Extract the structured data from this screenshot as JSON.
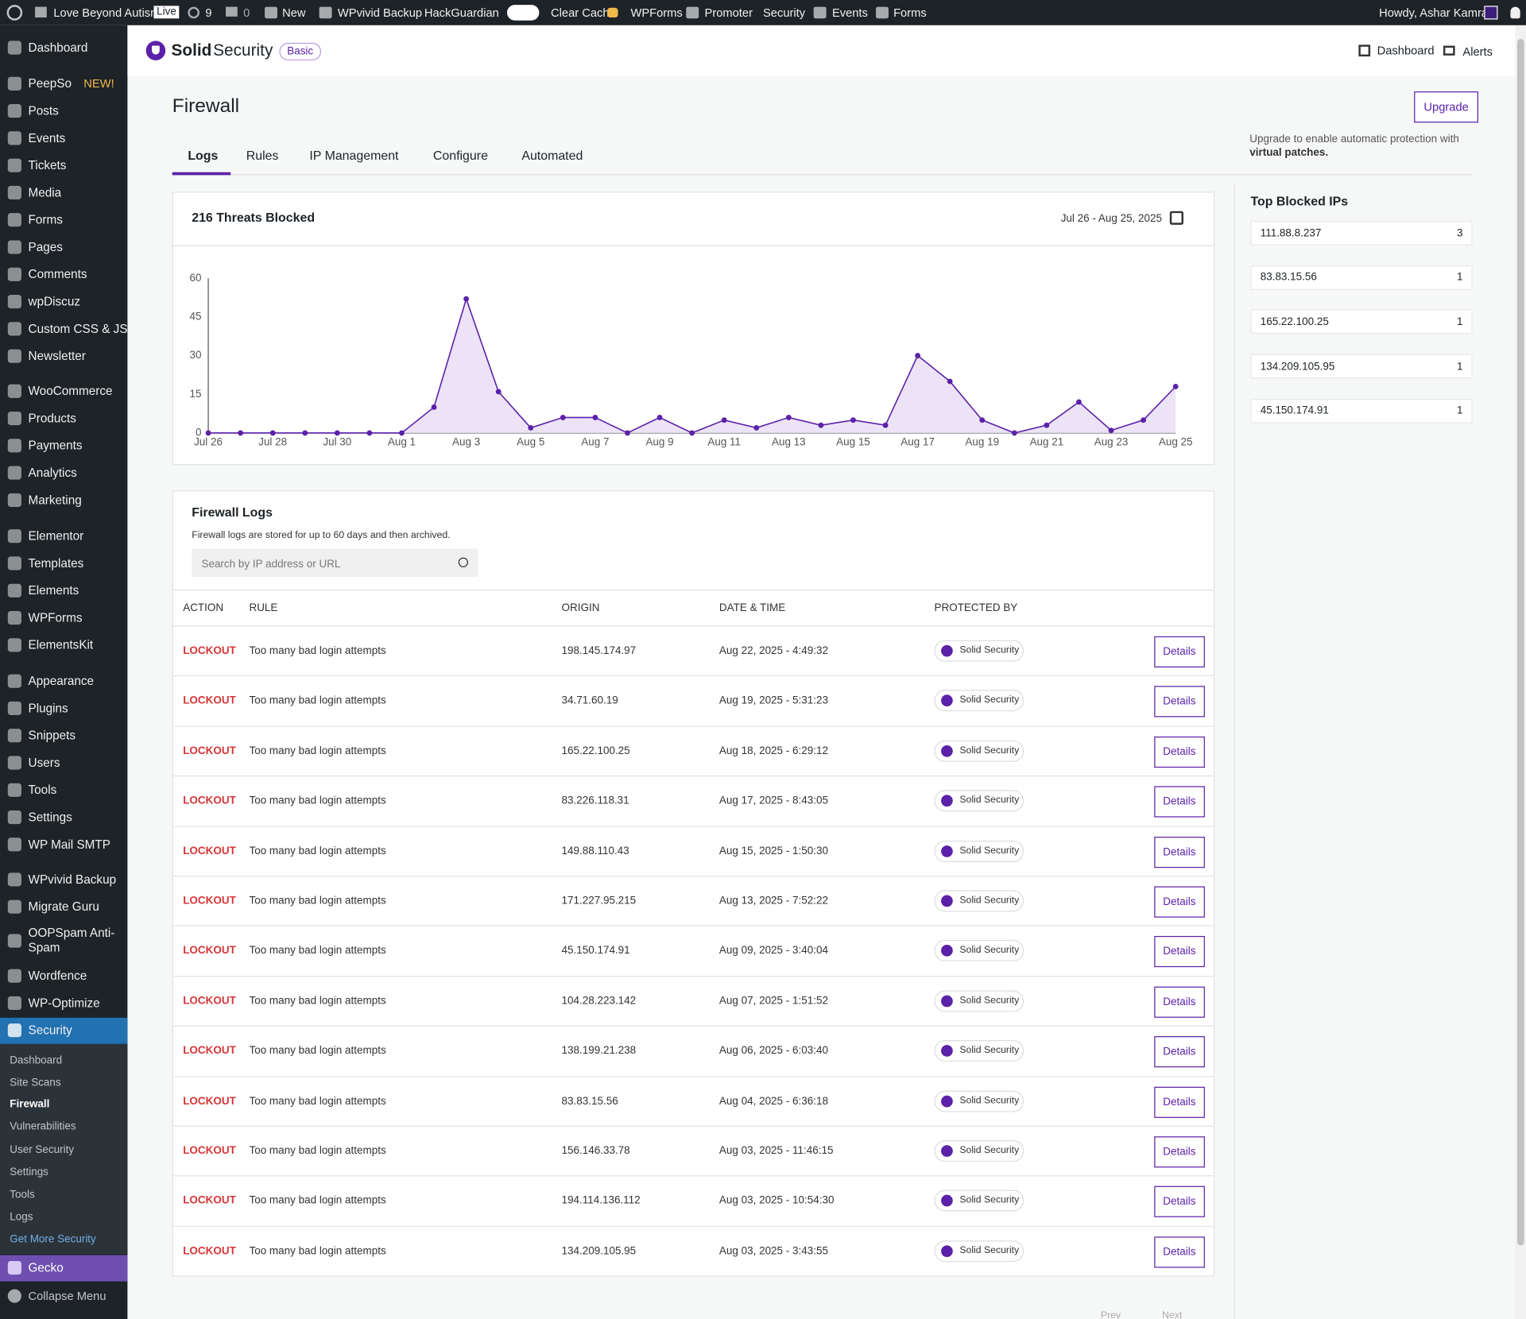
{
  "admin_bar": {
    "site": "Love Beyond Autism",
    "live": "Live",
    "updates": "9",
    "comments": "0",
    "items": [
      "New",
      "WPvivid Backup",
      "HackGuardian",
      "Clear Cache",
      "WPForms",
      "Promoter",
      "Security",
      "Events",
      "Forms"
    ],
    "howdy": "Howdy, Ashar Kamran"
  },
  "sidebar": {
    "menu": [
      "Dashboard",
      "PeepSo",
      "Posts",
      "Events",
      "Tickets",
      "Media",
      "Forms",
      "Pages",
      "Comments",
      "wpDiscuz",
      "Custom CSS & JS",
      "Newsletter",
      "WooCommerce",
      "Products",
      "Payments",
      "Analytics",
      "Marketing",
      "Elementor",
      "Templates",
      "Elements",
      "WPForms",
      "ElementsKit",
      "Appearance",
      "Plugins",
      "Snippets",
      "Users",
      "Tools",
      "Settings",
      "WP Mail SMTP",
      "WPvivid Backup",
      "Migrate Guru",
      "OOPSpam Anti-Spam",
      "Wordfence",
      "WP-Optimize",
      "Security"
    ],
    "peepso_badge": "NEW!",
    "submenu": [
      "Dashboard",
      "Site Scans",
      "Firewall",
      "Vulnerabilities",
      "User Security",
      "Settings",
      "Tools",
      "Logs",
      "Get More Security"
    ],
    "gecko": "Gecko",
    "collapse": "Collapse Menu"
  },
  "header": {
    "brand_bold": "Solid",
    "brand": "Security",
    "plan": "Basic",
    "dashboard": "Dashboard",
    "alerts": "Alerts"
  },
  "page": {
    "title": "Firewall",
    "upgrade": "Upgrade",
    "upgrade_note": "Upgrade to enable automatic protection with",
    "upgrade_note_bold": "virtual patches.",
    "tabs": [
      "Logs",
      "Rules",
      "IP Management",
      "Configure",
      "Automated"
    ]
  },
  "chart_data": {
    "type": "line",
    "title": "216 Threats Blocked",
    "subtitle": "Jul 26 - Aug 25, 2025",
    "categories": [
      "Jul 26",
      null,
      "Jul 28",
      null,
      "Jul 30",
      null,
      "Aug 1",
      null,
      "Aug 3",
      null,
      "Aug 5",
      null,
      "Aug 7",
      null,
      "Aug 9",
      null,
      "Aug 11",
      null,
      "Aug 13",
      null,
      "Aug 15",
      null,
      "Aug 17",
      null,
      "Aug 19",
      null,
      "Aug 21",
      null,
      "Aug 23",
      null,
      "Aug 25"
    ],
    "values": [
      0,
      0,
      0,
      0,
      0,
      0,
      0,
      10,
      52,
      16,
      2,
      6,
      6,
      0,
      6,
      0,
      5,
      2,
      6,
      3,
      5,
      3,
      30,
      20,
      5,
      0,
      3,
      12,
      1,
      5,
      18
    ],
    "color": "#5b21a8",
    "fill": "#ece3f7",
    "ylim": [
      0,
      60
    ],
    "yticks": [
      0,
      15,
      30,
      45,
      60
    ],
    "grid": false
  },
  "top_ips": {
    "title": "Top Blocked IPs",
    "items": [
      {
        "ip": "111.88.8.237",
        "count": 3
      },
      {
        "ip": "83.83.15.56",
        "count": 1
      },
      {
        "ip": "165.22.100.25",
        "count": 1
      },
      {
        "ip": "134.209.105.95",
        "count": 1
      },
      {
        "ip": "45.150.174.91",
        "count": 1
      }
    ]
  },
  "logs": {
    "title": "Firewall Logs",
    "note": "Firewall logs are stored for up to 60 days and then archived.",
    "search": "Search by IP address or URL",
    "columns": [
      "ACTION",
      "RULE",
      "ORIGIN",
      "DATE & TIME",
      "PROTECTED BY"
    ],
    "button": "Details",
    "rows": [
      [
        "LOCKOUT",
        "Too many bad login attempts",
        "198.145.174.97",
        "Aug 22, 2025 - 4:49:32",
        "Solid Security"
      ],
      [
        "LOCKOUT",
        "Too many bad login attempts",
        "34.71.60.19",
        "Aug 19, 2025 - 5:31:23",
        "Solid Security"
      ],
      [
        "LOCKOUT",
        "Too many bad login attempts",
        "165.22.100.25",
        "Aug 18, 2025 - 6:29:12",
        "Solid Security"
      ],
      [
        "LOCKOUT",
        "Too many bad login attempts",
        "83.226.118.31",
        "Aug 17, 2025 - 8:43:05",
        "Solid Security"
      ],
      [
        "LOCKOUT",
        "Too many bad login attempts",
        "149.88.110.43",
        "Aug 15, 2025 - 1:50:30",
        "Solid Security"
      ],
      [
        "LOCKOUT",
        "Too many bad login attempts",
        "171.227.95.215",
        "Aug 13, 2025 - 7:52:22",
        "Solid Security"
      ],
      [
        "LOCKOUT",
        "Too many bad login attempts",
        "45.150.174.91",
        "Aug 09, 2025 - 3:40:04",
        "Solid Security"
      ],
      [
        "LOCKOUT",
        "Too many bad login attempts",
        "104.28.223.142",
        "Aug 07, 2025 - 1:51:52",
        "Solid Security"
      ],
      [
        "LOCKOUT",
        "Too many bad login attempts",
        "138.199.21.238",
        "Aug 06, 2025 - 6:03:40",
        "Solid Security"
      ],
      [
        "LOCKOUT",
        "Too many bad login attempts",
        "83.83.15.56",
        "Aug 04, 2025 - 6:36:18",
        "Solid Security"
      ],
      [
        "LOCKOUT",
        "Too many bad login attempts",
        "156.146.33.78",
        "Aug 03, 2025 - 11:46:15",
        "Solid Security"
      ],
      [
        "LOCKOUT",
        "Too many bad login attempts",
        "194.114.136.112",
        "Aug 03, 2025 - 10:54:30",
        "Solid Security"
      ],
      [
        "LOCKOUT",
        "Too many bad login attempts",
        "134.209.105.95",
        "Aug 03, 2025 - 3:43:55",
        "Solid Security"
      ]
    ],
    "prev": "Prev",
    "next": "Next"
  }
}
